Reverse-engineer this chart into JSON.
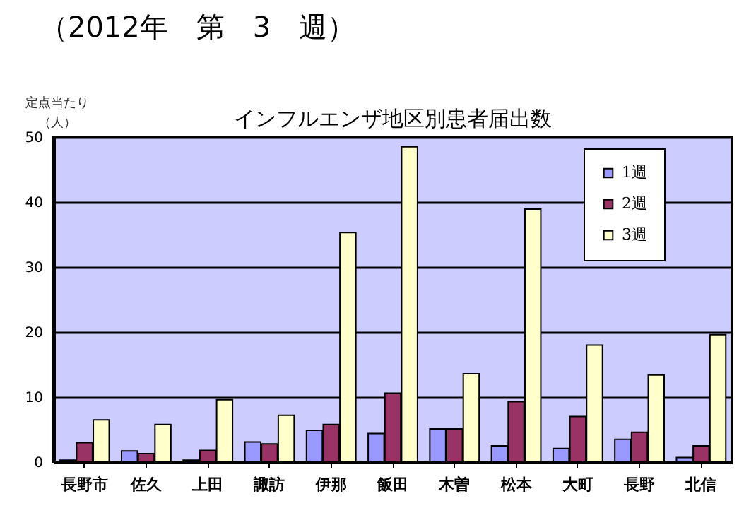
{
  "chart_data": {
    "type": "bar",
    "title": "（2012年　第　3　週）",
    "subtitle": "インフルエンザ地区別患者届出数",
    "ylabel": "定点当たり（人）",
    "categories": [
      "長野市",
      "佐久",
      "上田",
      "諏訪",
      "伊那",
      "飯田",
      "木曽",
      "松本",
      "大町",
      "長野",
      "北信"
    ],
    "series": [
      {
        "name": "1週",
        "color": "#9999ff",
        "values": [
          0.3,
          1.7,
          0.3,
          3.1,
          4.9,
          4.4,
          5.1,
          2.5,
          2.1,
          3.5,
          0.7
        ]
      },
      {
        "name": "2週",
        "color": "#993366",
        "values": [
          3.0,
          1.3,
          1.8,
          2.8,
          5.8,
          10.6,
          5.1,
          9.3,
          7.0,
          4.6,
          2.5
        ]
      },
      {
        "name": "3週",
        "color": "#ffffcc",
        "values": [
          6.5,
          5.8,
          9.6,
          7.2,
          35.3,
          48.5,
          13.6,
          38.9,
          18.0,
          13.4,
          19.6
        ]
      }
    ],
    "ylim": [
      0,
      50
    ],
    "yticks": [
      0,
      10,
      20,
      30,
      40,
      50
    ],
    "grid": "y",
    "legend": "top right"
  }
}
